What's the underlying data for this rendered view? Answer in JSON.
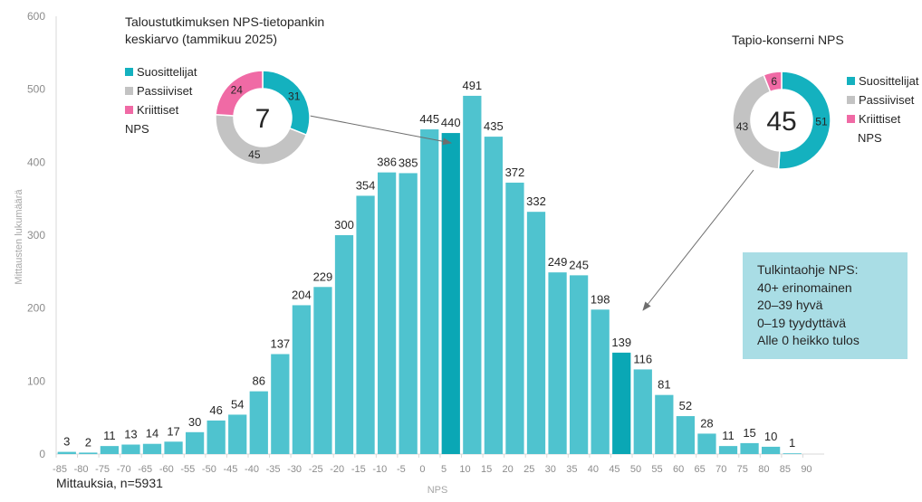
{
  "chart_data": {
    "type": "bar",
    "xlabel": "NPS",
    "ylabel": "Mittausten lukumäärä",
    "ylim": [
      0,
      600
    ],
    "yticks": [
      "0",
      "100",
      "200",
      "300",
      "400",
      "500",
      "600"
    ],
    "categories": [
      "-85",
      "-80",
      "-75",
      "-70",
      "-65",
      "-60",
      "-55",
      "-50",
      "-45",
      "-40",
      "-35",
      "-30",
      "-25",
      "-20",
      "-15",
      "-10",
      "-5",
      "0",
      "5",
      "10",
      "15",
      "20",
      "25",
      "30",
      "35",
      "40",
      "45",
      "50",
      "55",
      "60",
      "65",
      "70",
      "75",
      "80",
      "85",
      "90"
    ],
    "values": [
      3,
      2,
      11,
      13,
      14,
      17,
      30,
      46,
      54,
      86,
      137,
      204,
      229,
      300,
      354,
      386,
      385,
      445,
      440,
      491,
      435,
      372,
      332,
      249,
      245,
      198,
      139,
      116,
      81,
      52,
      28,
      11,
      15,
      10,
      1,
      null
    ],
    "highlighted_categories": [
      "5",
      "45"
    ],
    "colors": {
      "bar": "#4fc3cf",
      "highlight": "#0aa7b5"
    },
    "grid": false
  },
  "donut_left": {
    "title": "Taloustutkimuksen NPS-tietopankin keskiarvo (tammikuu 2025)",
    "center": "7",
    "segments": [
      {
        "name": "Suosittelijat",
        "value": 31,
        "label": "31",
        "color": "#14b1bf"
      },
      {
        "name": "Passiiviset",
        "value": 45,
        "label": "45",
        "color": "#c3c3c3"
      },
      {
        "name": "Kriittiset",
        "value": 24,
        "label": "24",
        "color": "#f06aa5"
      }
    ],
    "legend": [
      "Suosittelijat",
      "Passiiviset",
      "Kriittiset"
    ],
    "legend_extra": "NPS"
  },
  "donut_right": {
    "title": "Tapio-konserni NPS",
    "center": "45",
    "segments": [
      {
        "name": "Suosittelijat",
        "value": 51,
        "label": "51",
        "color": "#14b1bf"
      },
      {
        "name": "Passiiviset",
        "value": 43,
        "label": "43",
        "color": "#c3c3c3"
      },
      {
        "name": "Kriittiset",
        "value": 6,
        "label": "6",
        "color": "#f06aa5"
      }
    ],
    "legend": [
      "Suosittelijat",
      "Passiiviset",
      "Kriittiset"
    ],
    "legend_extra": "NPS"
  },
  "interpretation": {
    "title": "Tulkintaohje NPS:",
    "lines": [
      "40+ erinomainen",
      "20–39 hyvä",
      "0–19 tyydyttävä",
      "Alle 0 heikko tulos"
    ]
  },
  "footer": "Mittauksia, n=5931"
}
